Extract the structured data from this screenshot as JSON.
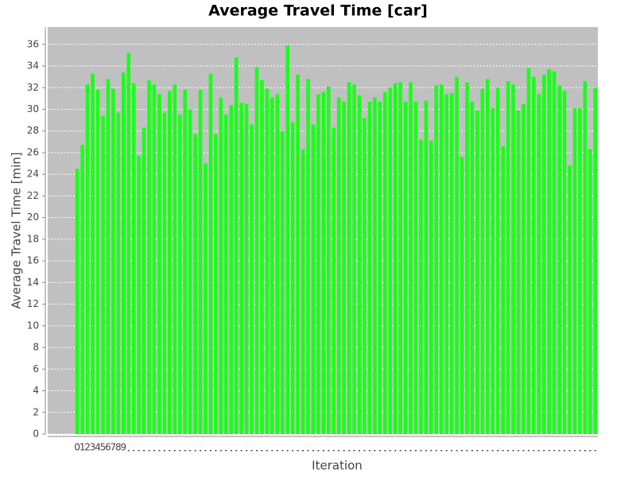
{
  "chart_data": {
    "type": "bar",
    "title": "Average Travel Time [car]",
    "x_label": "Iteration",
    "y_label": "Average Travel Time [min]",
    "categories": [
      "0",
      "1",
      "2",
      "3",
      "4",
      "5",
      "6",
      "7",
      "8",
      "9",
      null,
      null,
      null,
      null,
      null,
      null,
      null,
      null,
      null,
      null,
      null,
      null,
      null,
      null,
      null,
      null,
      null,
      null,
      null,
      null,
      null,
      null,
      null,
      null,
      null,
      null,
      null,
      null,
      null,
      null,
      null,
      null,
      null,
      null,
      null,
      null,
      null,
      null,
      null,
      null,
      null,
      null,
      null,
      null,
      null,
      null,
      null,
      null,
      null,
      null,
      null,
      null,
      null,
      null,
      null,
      null,
      null,
      null,
      null,
      null,
      null,
      null,
      null,
      null,
      null,
      null,
      null,
      null,
      null,
      null,
      null,
      null,
      null,
      null,
      null,
      null,
      null,
      null,
      null,
      null,
      null,
      null,
      null,
      null,
      null,
      null,
      null,
      null,
      null,
      null,
      null,
      null
    ],
    "values": [
      24.5,
      26.7,
      32.3,
      33.3,
      31.8,
      29.4,
      32.8,
      31.9,
      29.7,
      33.4,
      35.2,
      32.4,
      25.7,
      28.3,
      32.7,
      32.3,
      31.4,
      29.7,
      31.7,
      32.3,
      29.5,
      31.8,
      30.0,
      27.7,
      31.8,
      25.0,
      33.3,
      27.7,
      31.1,
      29.5,
      30.4,
      34.8,
      30.6,
      30.5,
      28.6,
      33.9,
      32.7,
      31.9,
      31.1,
      31.4,
      28.0,
      35.9,
      28.8,
      33.2,
      26.3,
      32.8,
      28.6,
      31.4,
      31.6,
      32.1,
      28.3,
      31.1,
      30.7,
      32.5,
      32.3,
      31.3,
      29.2,
      30.7,
      31.1,
      30.7,
      31.6,
      32.0,
      32.4,
      32.5,
      30.7,
      32.5,
      30.7,
      27.2,
      30.8,
      27.1,
      32.2,
      32.3,
      31.4,
      31.5,
      33.0,
      25.6,
      32.5,
      30.7,
      29.9,
      31.9,
      32.8,
      30.1,
      32.0,
      26.6,
      32.6,
      32.3,
      29.9,
      30.5,
      33.8,
      33.0,
      31.4,
      33.2,
      33.7,
      33.5,
      32.2,
      31.7,
      24.8,
      30.1,
      30.1,
      32.6,
      26.3,
      32.0
    ],
    "color": "#1aff1a",
    "ylim": [
      0,
      37.6
    ],
    "yticks": [
      0,
      2,
      4,
      6,
      8,
      10,
      12,
      14,
      16,
      18,
      20,
      22,
      24,
      26,
      28,
      30,
      32,
      34,
      36
    ],
    "grid": true
  }
}
